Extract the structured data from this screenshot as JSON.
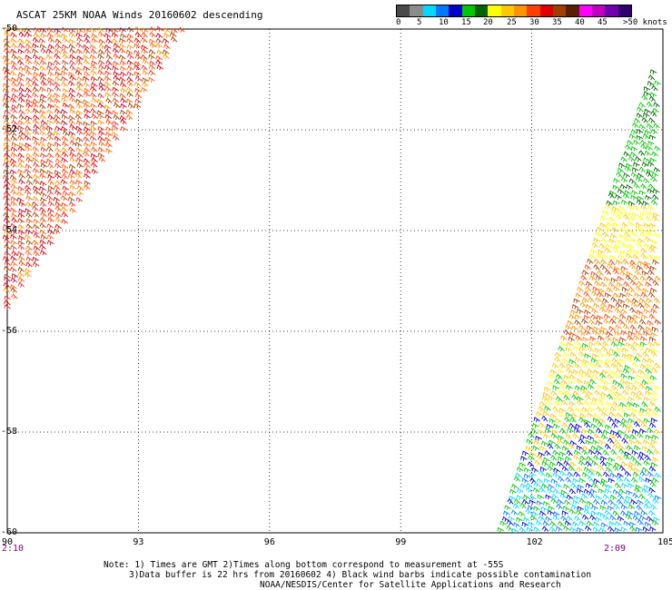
{
  "title": "ASCAT 25KM NOAA Winds 20160602 descending",
  "legend": {
    "colors": [
      "#4a4a4a",
      "#8c8c8c",
      "#00d8ff",
      "#0078ff",
      "#0000c8",
      "#00c800",
      "#006400",
      "#ffff00",
      "#ffc800",
      "#ff9400",
      "#ff4000",
      "#e00000",
      "#a04000",
      "#5a1e00",
      "#ff00ff",
      "#c000c0",
      "#7000b0",
      "#300070"
    ],
    "labels": [
      "0",
      "5",
      "10",
      "15",
      "20",
      "25",
      "30",
      "35",
      "40",
      "45",
      ">50 knots"
    ]
  },
  "map": {
    "lon_range": [
      90,
      105
    ],
    "lat_range": [
      -60,
      -50
    ],
    "lon_ticks": [
      "90",
      "93",
      "96",
      "99",
      "102",
      "105"
    ],
    "lat_ticks": [
      "-50",
      "-52",
      "-54",
      "-56",
      "-58",
      "-60"
    ],
    "times": [
      "2:10",
      "2:09"
    ]
  },
  "notes": [
    "Note: 1) Times are GMT 2)Times along bottom correspond to measurement at -55S",
    "3)Data buffer is 22 hrs from 20160602 4) Black wind barbs indicate possible contamination",
    "NOAA/NESDIS/Center for Satellite Applications and Research"
  ]
}
